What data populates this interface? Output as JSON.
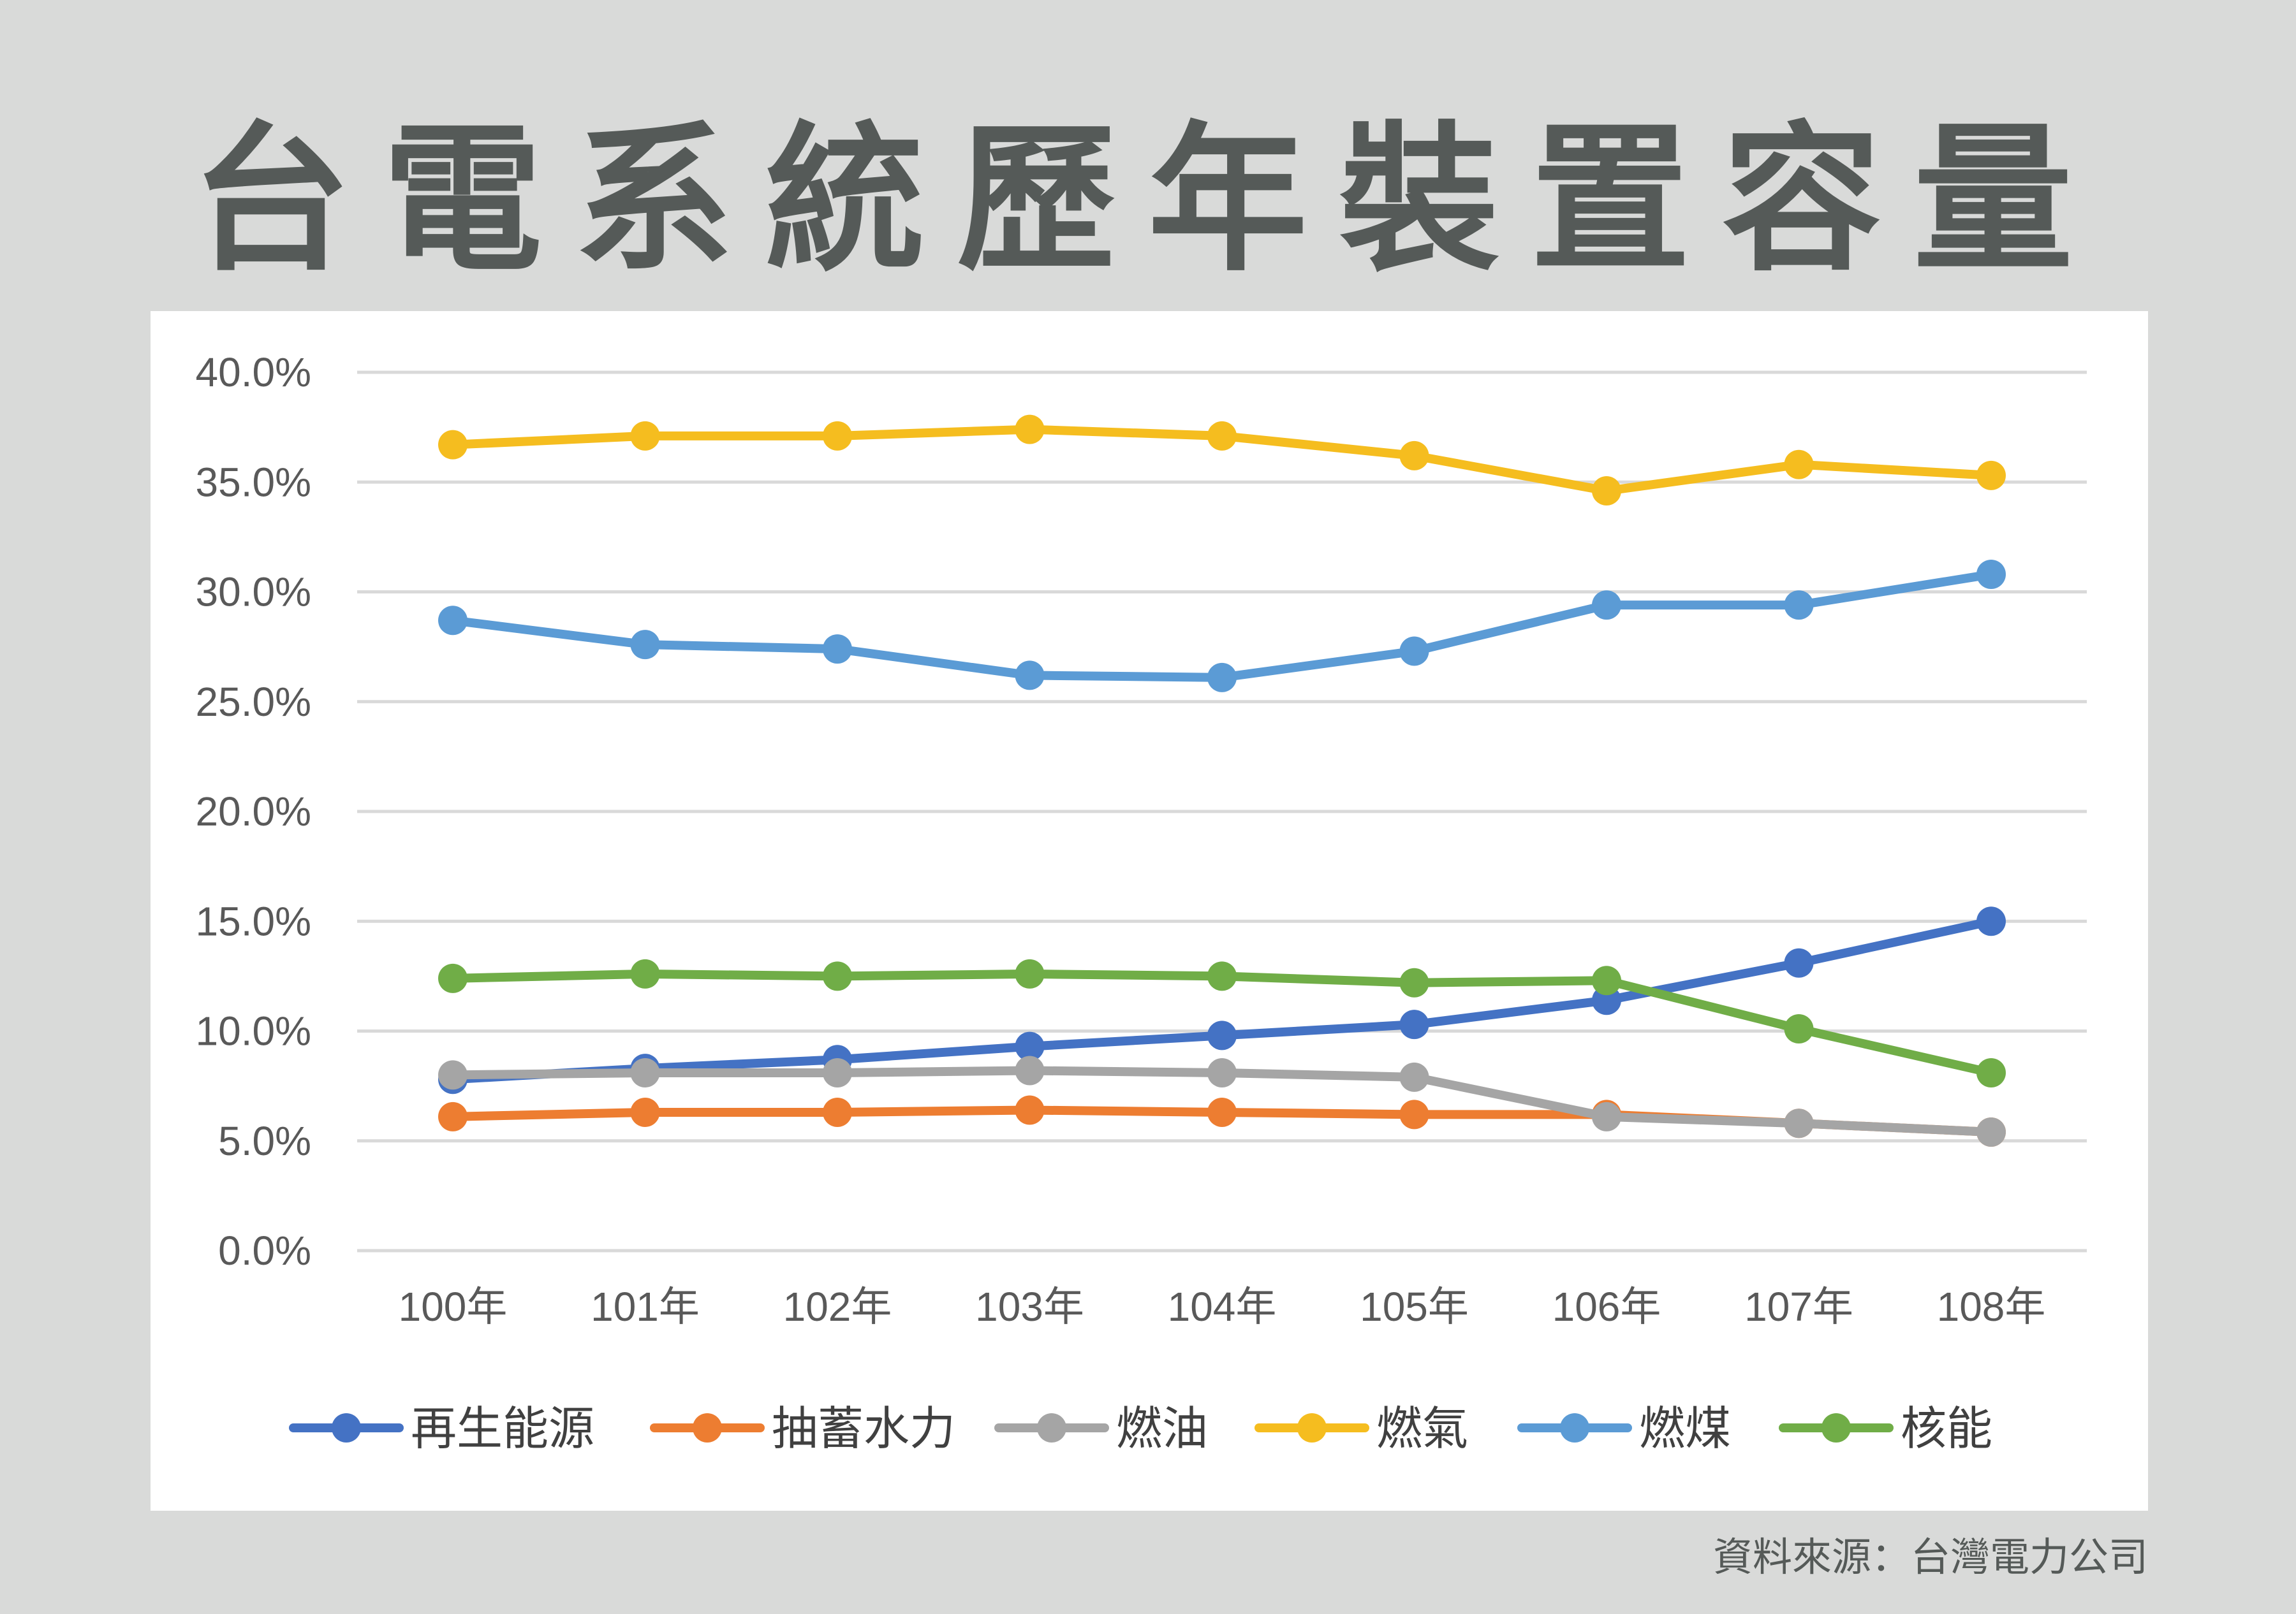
{
  "title": "台電系統歷年裝置容量",
  "source": "資料來源：台灣電力公司",
  "chart_data": {
    "type": "line",
    "categories": [
      "100年",
      "101年",
      "102年",
      "103年",
      "104年",
      "105年",
      "106年",
      "107年",
      "108年"
    ],
    "ylim": [
      0,
      40
    ],
    "yticks": [
      "0.0%",
      "5.0%",
      "10.0%",
      "15.0%",
      "20.0%",
      "25.0%",
      "30.0%",
      "35.0%",
      "40.0%"
    ],
    "grid": true,
    "legend_position": "bottom",
    "series": [
      {
        "name": "再生能源",
        "color": "#4472c4",
        "values": [
          7.8,
          8.3,
          8.7,
          9.3,
          9.8,
          10.3,
          11.4,
          13.1,
          15.0
        ]
      },
      {
        "name": "抽蓄水力",
        "color": "#ed7d31",
        "values": [
          6.1,
          6.3,
          6.3,
          6.4,
          6.3,
          6.2,
          6.2,
          5.8,
          5.4
        ]
      },
      {
        "name": "燃油",
        "color": "#a5a5a5",
        "values": [
          8.0,
          8.1,
          8.1,
          8.2,
          8.1,
          7.9,
          6.1,
          5.8,
          5.4
        ]
      },
      {
        "name": "燃氣",
        "color": "#f5bd1f",
        "values": [
          36.7,
          37.1,
          37.1,
          37.4,
          37.1,
          36.2,
          34.6,
          35.8,
          35.3
        ]
      },
      {
        "name": "燃煤",
        "color": "#5b9bd5",
        "values": [
          28.7,
          27.6,
          27.4,
          26.2,
          26.1,
          27.3,
          29.4,
          29.4,
          30.8
        ]
      },
      {
        "name": "核能",
        "color": "#70ad47",
        "values": [
          12.4,
          12.6,
          12.5,
          12.6,
          12.5,
          12.2,
          12.3,
          10.1,
          8.1
        ]
      }
    ]
  }
}
